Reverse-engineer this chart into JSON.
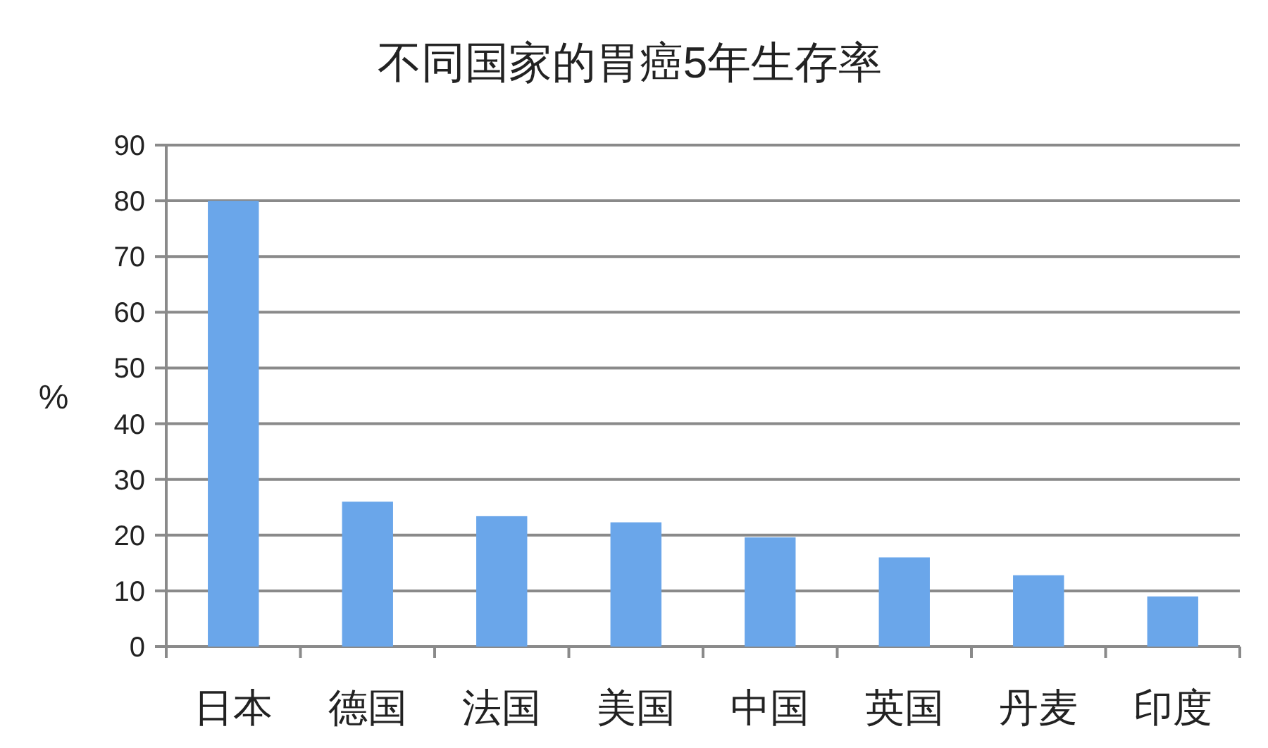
{
  "chart_data": {
    "type": "bar",
    "title": "不同国家的胃癌5年生存率",
    "ylabel": "%",
    "categories": [
      "日本",
      "德国",
      "法国",
      "美国",
      "中国",
      "英国",
      "丹麦",
      "印度"
    ],
    "values": [
      80,
      26,
      23.4,
      22.3,
      19.6,
      16,
      12.8,
      9
    ],
    "color": "#6aa6ea",
    "ylim": [
      0,
      90
    ],
    "yticks": [
      0,
      10,
      20,
      30,
      40,
      50,
      60,
      70,
      80,
      90
    ],
    "grid": "y"
  }
}
